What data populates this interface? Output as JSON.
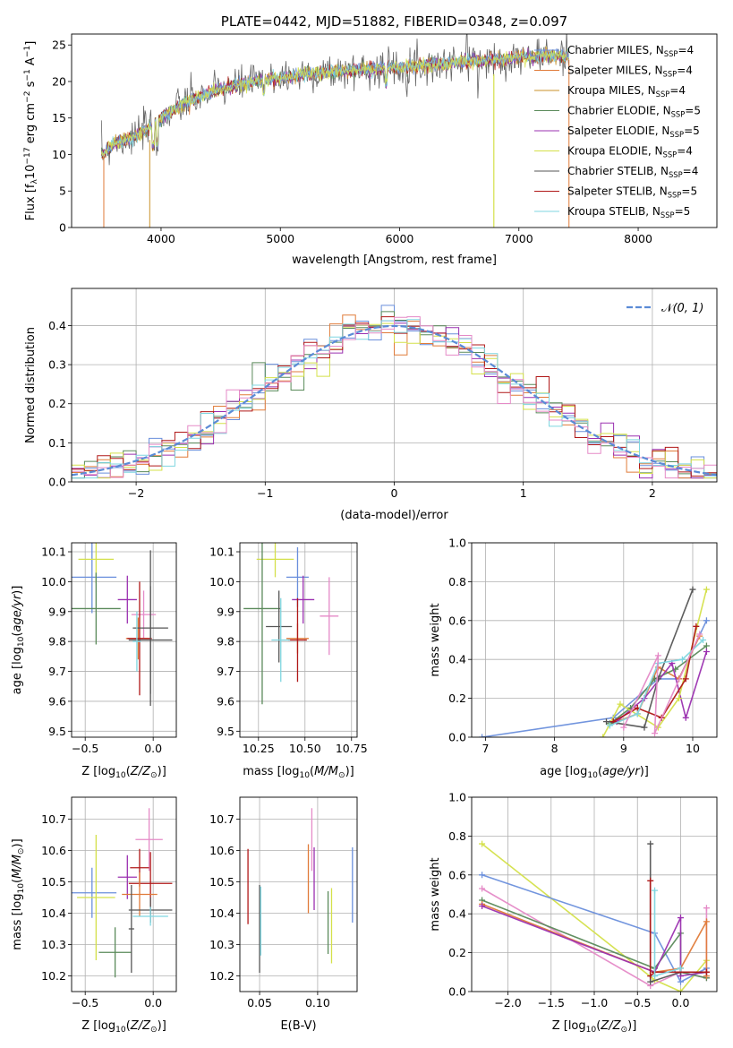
{
  "chart_data": [
    {
      "type": "line",
      "title": "PLATE=0442, MJD=51882, FIBERID=0348, z=0.097",
      "xlabel": "wavelength [Angstrom, rest frame]",
      "ylabel": "Flux [f_λ 10^-17 erg cm^-2 s^-1 A^-1]",
      "xlim": [
        3250,
        8660
      ],
      "ylim": [
        0,
        26.5
      ],
      "xticks": [
        4000,
        5000,
        6000,
        7000,
        8000
      ],
      "yticks": [
        0,
        5,
        10,
        15,
        20,
        25
      ],
      "grid": false,
      "legend_position": "top-right",
      "series": [
        {
          "name": "Chabrier MILES, N_SSP=4",
          "color": "#6a8fdc"
        },
        {
          "name": "Salpeter MILES, N_SSP=4",
          "color": "#e07b39"
        },
        {
          "name": "Kroupa MILES, N_SSP=4",
          "color": "#c8922a"
        },
        {
          "name": "Chabrier ELODIE, N_SSP=5",
          "color": "#5a8a5a"
        },
        {
          "name": "Salpeter ELODIE, N_SSP=5",
          "color": "#9b30b0"
        },
        {
          "name": "Kroupa ELODIE, N_SSP=4",
          "color": "#d4e04a"
        },
        {
          "name": "Chabrier STELIB, N_SSP=4",
          "color": "#555555"
        },
        {
          "name": "Salpeter STELIB, N_SSP=5",
          "color": "#b01818"
        },
        {
          "name": "Kroupa STELIB, N_SSP=5",
          "color": "#7fd6e0"
        }
      ],
      "continuum": {
        "x": [
          3500,
          3600,
          3800,
          4000,
          4200,
          4500,
          4800,
          5200,
          5600,
          6000,
          6400,
          6800,
          7200,
          7420
        ],
        "y": [
          10.0,
          11.5,
          12.5,
          15.0,
          17.0,
          19.0,
          20.0,
          21.0,
          21.5,
          22.0,
          22.5,
          23.0,
          23.5,
          23.5
        ]
      }
    },
    {
      "type": "histogram",
      "xlabel": "(data-model)/error",
      "ylabel": "Normed distribution",
      "xlim": [
        -2.5,
        2.5
      ],
      "ylim": [
        0,
        0.495
      ],
      "xticks": [
        -2,
        -1,
        0,
        1,
        2
      ],
      "yticks": [
        0.0,
        0.1,
        0.2,
        0.3,
        0.4
      ],
      "grid": true,
      "legend_position": "top-right",
      "reference_curve": {
        "name": "N(0,1)",
        "color": "#5b8bd6"
      },
      "bin_width": 0.1,
      "series_colors": [
        "#6a8fdc",
        "#e07b39",
        "#5a8a5a",
        "#9b30b0",
        "#d4e04a",
        "#b01818",
        "#7fd6e0",
        "#e58ac7"
      ]
    },
    {
      "type": "scatter",
      "xlabel": "Z [log10(Z/Z_sun)]",
      "ylabel": "age [log10(age/yr)]",
      "xlim": [
        -0.6,
        0.17
      ],
      "ylim": [
        9.48,
        10.13
      ],
      "xticks": [
        -0.5,
        0.0
      ],
      "yticks": [
        9.5,
        9.6,
        9.7,
        9.8,
        9.9,
        10.0,
        10.1
      ],
      "grid": true,
      "points": [
        {
          "color": "#6a8fdc",
          "x": -0.45,
          "xerr": 0.18,
          "y": 10.015,
          "yerr": 0.12
        },
        {
          "color": "#d4e04a",
          "x": -0.42,
          "xerr": 0.13,
          "y": 10.075,
          "yerr": 0.08
        },
        {
          "color": "#5a8a5a",
          "x": -0.42,
          "xerr": 0.18,
          "y": 9.91,
          "yerr": 0.12
        },
        {
          "color": "#9b30b0",
          "x": -0.19,
          "xerr": 0.07,
          "y": 9.94,
          "yerr": 0.08
        },
        {
          "color": "#e58ac7",
          "x": -0.07,
          "xerr": 0.09,
          "y": 9.89,
          "yerr": 0.08
        },
        {
          "color": "#e07b39",
          "x": -0.11,
          "xerr": 0.09,
          "y": 9.81,
          "yerr": 0.07
        },
        {
          "color": "#b01818",
          "x": -0.1,
          "xerr": 0.09,
          "y": 9.81,
          "yerr": 0.19
        },
        {
          "color": "#555555",
          "x": -0.02,
          "xerr": 0.13,
          "y": 9.845,
          "yerr": 0.26
        },
        {
          "color": "#555555",
          "x": -0.02,
          "xerr": 0.16,
          "y": 9.805,
          "yerr": 0.18
        },
        {
          "color": "#7fd6e0",
          "x": -0.12,
          "xerr": 0.03,
          "y": 9.8,
          "yerr": 0.1
        }
      ]
    },
    {
      "type": "scatter",
      "xlabel": "mass [log10(M/M_sun)]",
      "ylabel": "",
      "xlim": [
        10.15,
        10.78
      ],
      "ylim": [
        9.48,
        10.13
      ],
      "xticks": [
        10.25,
        10.5,
        10.75
      ],
      "yticks": [
        9.5,
        9.6,
        9.7,
        9.8,
        9.9,
        10.0,
        10.1
      ],
      "grid": true,
      "points": [
        {
          "color": "#d4e04a",
          "x": 10.34,
          "xerr": 0.1,
          "y": 10.075,
          "yerr": 0.06
        },
        {
          "color": "#6a8fdc",
          "x": 10.46,
          "xerr": 0.06,
          "y": 10.015,
          "yerr": 0.1
        },
        {
          "color": "#9b30b0",
          "x": 10.49,
          "xerr": 0.06,
          "y": 9.94,
          "yerr": 0.08
        },
        {
          "color": "#5a8a5a",
          "x": 10.27,
          "xerr": 0.1,
          "y": 9.91,
          "yerr": 0.32
        },
        {
          "color": "#e58ac7",
          "x": 10.63,
          "xerr": 0.05,
          "y": 9.885,
          "yerr": 0.13
        },
        {
          "color": "#555555",
          "x": 10.36,
          "xerr": 0.07,
          "y": 9.85,
          "yerr": 0.12
        },
        {
          "color": "#e07b39",
          "x": 10.46,
          "xerr": 0.06,
          "y": 9.81,
          "yerr": 0.05
        },
        {
          "color": "#b01818",
          "x": 10.46,
          "xerr": 0.05,
          "y": 9.805,
          "yerr": 0.14
        },
        {
          "color": "#7fd6e0",
          "x": 10.37,
          "xerr": 0.05,
          "y": 9.805,
          "yerr": 0.14
        }
      ]
    },
    {
      "type": "line",
      "xlabel": "age [log10(age/yr)]",
      "ylabel": "mass weight",
      "xlim": [
        6.8,
        10.35
      ],
      "ylim": [
        0,
        1.0
      ],
      "xticks": [
        7,
        8,
        9,
        10
      ],
      "yticks": [
        0.0,
        0.2,
        0.4,
        0.6,
        0.8,
        1.0
      ],
      "grid": true,
      "series": [
        {
          "color": "#6a8fdc",
          "x": [
            6.95,
            8.85,
            9.5,
            9.8,
            10.2
          ],
          "y": [
            0.0,
            0.1,
            0.3,
            0.3,
            0.6
          ]
        },
        {
          "color": "#e07b39",
          "x": [
            8.9,
            9.2,
            9.5,
            9.8,
            10.1
          ],
          "y": [
            0.08,
            0.12,
            0.36,
            0.3,
            0.52
          ]
        },
        {
          "color": "#5a8a5a",
          "x": [
            8.8,
            9.1,
            9.45,
            9.75,
            10.2
          ],
          "y": [
            0.07,
            0.15,
            0.3,
            0.35,
            0.47
          ]
        },
        {
          "color": "#9b30b0",
          "x": [
            8.9,
            9.3,
            9.7,
            9.9,
            10.2
          ],
          "y": [
            0.08,
            0.2,
            0.38,
            0.1,
            0.44
          ]
        },
        {
          "color": "#d4e04a",
          "x": [
            8.7,
            8.95,
            9.5,
            9.8,
            10.2
          ],
          "y": [
            0.0,
            0.17,
            0.05,
            0.2,
            0.76
          ]
        },
        {
          "color": "#555555",
          "x": [
            8.75,
            9.3,
            9.5,
            10.0
          ],
          "y": [
            0.08,
            0.05,
            0.3,
            0.76
          ]
        },
        {
          "color": "#b01818",
          "x": [
            8.85,
            9.2,
            9.55,
            9.9,
            10.05
          ],
          "y": [
            0.08,
            0.15,
            0.1,
            0.3,
            0.57
          ]
        },
        {
          "color": "#7fd6e0",
          "x": [
            8.8,
            9.2,
            9.5,
            9.85,
            10.15
          ],
          "y": [
            0.06,
            0.12,
            0.38,
            0.4,
            0.5
          ]
        },
        {
          "color": "#e58ac7",
          "x": [
            9.0,
            9.5,
            9.45,
            10.1
          ],
          "y": [
            0.05,
            0.42,
            0.02,
            0.53
          ]
        }
      ]
    },
    {
      "type": "scatter",
      "xlabel": "Z [log10(Z/Z_sun)]",
      "ylabel": "mass [log10(M/M_sun)]",
      "xlim": [
        -0.6,
        0.17
      ],
      "ylim": [
        10.15,
        10.77
      ],
      "xticks": [
        -0.5,
        0.0
      ],
      "yticks": [
        10.2,
        10.3,
        10.4,
        10.5,
        10.6,
        10.7
      ],
      "grid": true,
      "points": [
        {
          "color": "#e58ac7",
          "x": -0.03,
          "xerr": 0.1,
          "y": 10.635,
          "yerr": 0.1
        },
        {
          "color": "#b01818",
          "x": -0.1,
          "xerr": 0.07,
          "y": 10.545,
          "yerr": 0.06
        },
        {
          "color": "#9b30b0",
          "x": -0.19,
          "xerr": 0.07,
          "y": 10.515,
          "yerr": 0.07
        },
        {
          "color": "#b01818",
          "x": -0.02,
          "xerr": 0.16,
          "y": 10.495,
          "yerr": 0.1
        },
        {
          "color": "#6a8fdc",
          "x": -0.45,
          "xerr": 0.18,
          "y": 10.465,
          "yerr": 0.08
        },
        {
          "color": "#e07b39",
          "x": -0.1,
          "xerr": 0.13,
          "y": 10.46,
          "yerr": 0.07
        },
        {
          "color": "#d4e04a",
          "x": -0.42,
          "xerr": 0.14,
          "y": 10.45,
          "yerr": 0.2
        },
        {
          "color": "#555555",
          "x": -0.02,
          "xerr": 0.16,
          "y": 10.41,
          "yerr": 0.04
        },
        {
          "color": "#7fd6e0",
          "x": -0.02,
          "xerr": 0.13,
          "y": 10.39,
          "yerr": 0.03
        },
        {
          "color": "#5a8a5a",
          "x": -0.28,
          "xerr": 0.12,
          "y": 10.275,
          "yerr": 0.08
        },
        {
          "color": "#555555",
          "x": -0.16,
          "xerr": 0.02,
          "y": 10.35,
          "yerr": 0.14
        }
      ]
    },
    {
      "type": "scatter",
      "xlabel": "E(B-V)",
      "ylabel": "",
      "xlim": [
        0.033,
        0.134
      ],
      "ylim": [
        10.15,
        10.77
      ],
      "xticks": [
        0.05,
        0.1
      ],
      "yticks": [
        10.2,
        10.3,
        10.4,
        10.5,
        10.6,
        10.7
      ],
      "grid": true,
      "points": [
        {
          "color": "#e58ac7",
          "x": 0.095,
          "y": 10.635,
          "yerr": 0.1
        },
        {
          "color": "#b01818",
          "x": 0.04,
          "y": 10.485,
          "yerr": 0.12
        },
        {
          "color": "#e07b39",
          "x": 0.092,
          "y": 10.51,
          "yerr": 0.11
        },
        {
          "color": "#9b30b0",
          "x": 0.097,
          "y": 10.51,
          "yerr": 0.1
        },
        {
          "color": "#6a8fdc",
          "x": 0.13,
          "y": 10.49,
          "yerr": 0.12
        },
        {
          "color": "#d4e04a",
          "x": 0.112,
          "y": 10.36,
          "yerr": 0.12
        },
        {
          "color": "#5a8a5a",
          "x": 0.109,
          "y": 10.37,
          "yerr": 0.1
        },
        {
          "color": "#555555",
          "x": 0.05,
          "y": 10.35,
          "yerr": 0.14
        },
        {
          "color": "#7fd6e0",
          "x": 0.051,
          "y": 10.375,
          "yerr": 0.11
        }
      ]
    },
    {
      "type": "line",
      "xlabel": "Z [log10(Z/Z_sun)]",
      "ylabel": "mass weight",
      "xlim": [
        -2.42,
        0.42
      ],
      "ylim": [
        0,
        1.0
      ],
      "xticks": [
        -2.0,
        -1.5,
        -1.0,
        -0.5,
        0.0
      ],
      "yticks": [
        0.0,
        0.2,
        0.4,
        0.6,
        0.8,
        1.0
      ],
      "grid": true,
      "series": [
        {
          "color": "#d4e04a",
          "x": [
            -2.3,
            -0.3,
            0.0,
            0.3
          ],
          "y": [
            0.76,
            0.06,
            0.0,
            0.16
          ]
        },
        {
          "color": "#6a8fdc",
          "x": [
            -2.3,
            -0.3,
            0.0,
            0.3
          ],
          "y": [
            0.6,
            0.3,
            0.05,
            0.12
          ]
        },
        {
          "color": "#e58ac7",
          "x": [
            -2.3,
            -0.35,
            0.0,
            0.3,
            0.3
          ],
          "y": [
            0.53,
            0.03,
            0.1,
            0.07,
            0.43
          ]
        },
        {
          "color": "#5a8a5a",
          "x": [
            -2.3,
            -0.3,
            0.0,
            0.0,
            0.3
          ],
          "y": [
            0.47,
            0.12,
            0.3,
            0.1,
            0.07
          ]
        },
        {
          "color": "#e07b39",
          "x": [
            -2.3,
            -0.3,
            0.0,
            0.3,
            0.3
          ],
          "y": [
            0.45,
            0.1,
            0.12,
            0.36,
            0.08
          ]
        },
        {
          "color": "#9b30b0",
          "x": [
            -2.3,
            -0.3,
            0.0,
            0.0,
            0.3
          ],
          "y": [
            0.44,
            0.1,
            0.38,
            0.08,
            0.1
          ]
        },
        {
          "color": "#555555",
          "x": [
            -0.35,
            -0.35,
            0.0,
            0.3
          ],
          "y": [
            0.76,
            0.05,
            0.1,
            0.1
          ]
        },
        {
          "color": "#b01818",
          "x": [
            -0.35,
            -0.35,
            -0.3,
            0.3
          ],
          "y": [
            0.57,
            0.08,
            0.1,
            0.1
          ]
        },
        {
          "color": "#7fd6e0",
          "x": [
            -0.3,
            -0.3,
            0.0
          ],
          "y": [
            0.52,
            0.08,
            0.12
          ]
        }
      ]
    }
  ]
}
